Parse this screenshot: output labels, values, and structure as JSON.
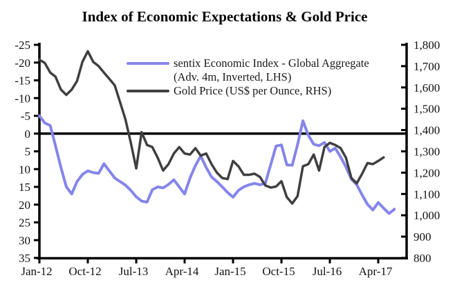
{
  "window": {
    "title": "Index of Economic Expectations & Gold Price"
  },
  "legend": {
    "position": "top-center-inside",
    "items": [
      {
        "name": "sentix",
        "label_line1": "sentix Economic Index - Global Aggregate",
        "label_line2": "(Adv. 4m, Inverted, LHS)",
        "color": "#8585EB"
      },
      {
        "name": "gold",
        "label": "Gold Price (US$ per Ounce, RHS)",
        "color": "#3F3F3F"
      }
    ]
  },
  "chart_data": {
    "type": "line",
    "title": "Index of Economic Expectations & Gold Price",
    "grid": false,
    "x_start_month": "Jan-12",
    "x_tick_labels": [
      "Jan-12",
      "Oct-12",
      "Jul-13",
      "Apr-14",
      "Jan-15",
      "Oct-15",
      "Jul-16",
      "Apr-17"
    ],
    "x_tick_months": [
      0,
      9,
      18,
      27,
      36,
      45,
      54,
      63
    ],
    "left_axis": {
      "side": "left",
      "inverted": true,
      "min": -25,
      "max": 35,
      "step": 5,
      "tick_values": [
        -25,
        -20,
        -15,
        -10,
        -5,
        0,
        5,
        10,
        15,
        20,
        25,
        30,
        35
      ],
      "tick_labels": [
        "-25",
        "-20",
        "-15",
        "-10",
        "-5",
        "0",
        "5",
        "10",
        "15",
        "20",
        "25",
        "30",
        "35"
      ]
    },
    "right_axis": {
      "side": "right",
      "inverted": false,
      "min": 800,
      "max": 1800,
      "step": 100,
      "tick_values": [
        1800,
        1700,
        1600,
        1500,
        1400,
        1300,
        1200,
        1100,
        1000,
        900,
        800
      ],
      "tick_labels": [
        "1,800",
        "1,700",
        "1,600",
        "1,500",
        "1,400",
        "1,300",
        "1,200",
        "1,100",
        "1,000",
        "900",
        "800"
      ]
    },
    "zero_line_value": 0,
    "series": [
      {
        "name": "sentix Economic Index - Global Aggregate (Adv. 4m, Inverted, LHS)",
        "axis": "left",
        "color": "#8585EB",
        "stroke_width": 4,
        "start_month_index": 0,
        "values": [
          -5.0,
          -3.0,
          -2.3,
          3.5,
          9.5,
          15.0,
          17.0,
          13.5,
          11.5,
          10.5,
          11.0,
          11.2,
          8.5,
          10.5,
          12.5,
          13.5,
          14.5,
          16.0,
          17.8,
          19.0,
          19.3,
          15.8,
          15.0,
          15.3,
          14.3,
          13.0,
          15.0,
          17.0,
          12.5,
          9.0,
          6.3,
          9.5,
          12.2,
          13.5,
          15.0,
          16.6,
          17.9,
          16.0,
          15.0,
          14.4,
          14.0,
          14.4,
          14.0,
          8.8,
          3.5,
          3.2,
          8.8,
          8.9,
          3.1,
          -3.6,
          0.5,
          3.0,
          3.4,
          2.5,
          5.0,
          4.1,
          6.6,
          9.4,
          12.8,
          14.4,
          17.3,
          19.9,
          21.5,
          19.4,
          21.0,
          22.5,
          21.3
        ]
      },
      {
        "name": "Gold Price (US$ per Ounce, RHS)",
        "axis": "right",
        "color": "#3F3F3F",
        "stroke_width": 3.5,
        "start_month_index": 0,
        "values": [
          1730,
          1715,
          1670,
          1650,
          1590,
          1565,
          1590,
          1630,
          1720,
          1770,
          1720,
          1700,
          1670,
          1640,
          1610,
          1530,
          1450,
          1340,
          1220,
          1390,
          1330,
          1320,
          1270,
          1210,
          1240,
          1290,
          1320,
          1290,
          1285,
          1315,
          1280,
          1290,
          1240,
          1200,
          1175,
          1170,
          1255,
          1230,
          1190,
          1190,
          1195,
          1180,
          1140,
          1130,
          1135,
          1160,
          1085,
          1055,
          1090,
          1230,
          1240,
          1285,
          1210,
          1320,
          1340,
          1330,
          1315,
          1270,
          1175,
          1150,
          1195,
          1245,
          1240,
          1255,
          1272
        ]
      }
    ]
  }
}
